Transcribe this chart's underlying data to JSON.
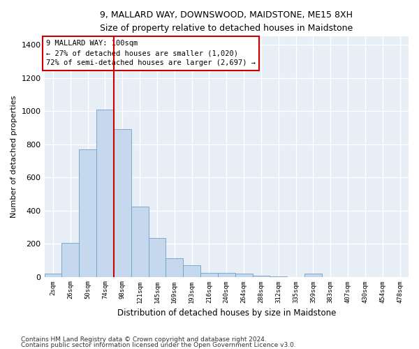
{
  "title": "9, MALLARD WAY, DOWNSWOOD, MAIDSTONE, ME15 8XH",
  "subtitle": "Size of property relative to detached houses in Maidstone",
  "xlabel": "Distribution of detached houses by size in Maidstone",
  "ylabel": "Number of detached properties",
  "categories": [
    "2sqm",
    "26sqm",
    "50sqm",
    "74sqm",
    "98sqm",
    "121sqm",
    "145sqm",
    "169sqm",
    "193sqm",
    "216sqm",
    "240sqm",
    "264sqm",
    "288sqm",
    "312sqm",
    "335sqm",
    "359sqm",
    "383sqm",
    "407sqm",
    "430sqm",
    "454sqm",
    "478sqm"
  ],
  "values": [
    20,
    205,
    770,
    1010,
    890,
    425,
    235,
    110,
    70,
    25,
    25,
    18,
    8,
    2,
    0,
    18,
    0,
    0,
    0,
    0,
    0
  ],
  "bar_color": "#c5d8ee",
  "bar_edge_color": "#6ea0c8",
  "vline_color": "#cc0000",
  "vline_index": 4,
  "annotation_text": "9 MALLARD WAY: 100sqm\n← 27% of detached houses are smaller (1,020)\n72% of semi-detached houses are larger (2,697) →",
  "ylim": [
    0,
    1450
  ],
  "yticks": [
    0,
    200,
    400,
    600,
    800,
    1000,
    1200,
    1400
  ],
  "bg_color": "#e8eef6",
  "footnote1": "Contains HM Land Registry data © Crown copyright and database right 2024.",
  "footnote2": "Contains public sector information licensed under the Open Government Licence v3.0."
}
